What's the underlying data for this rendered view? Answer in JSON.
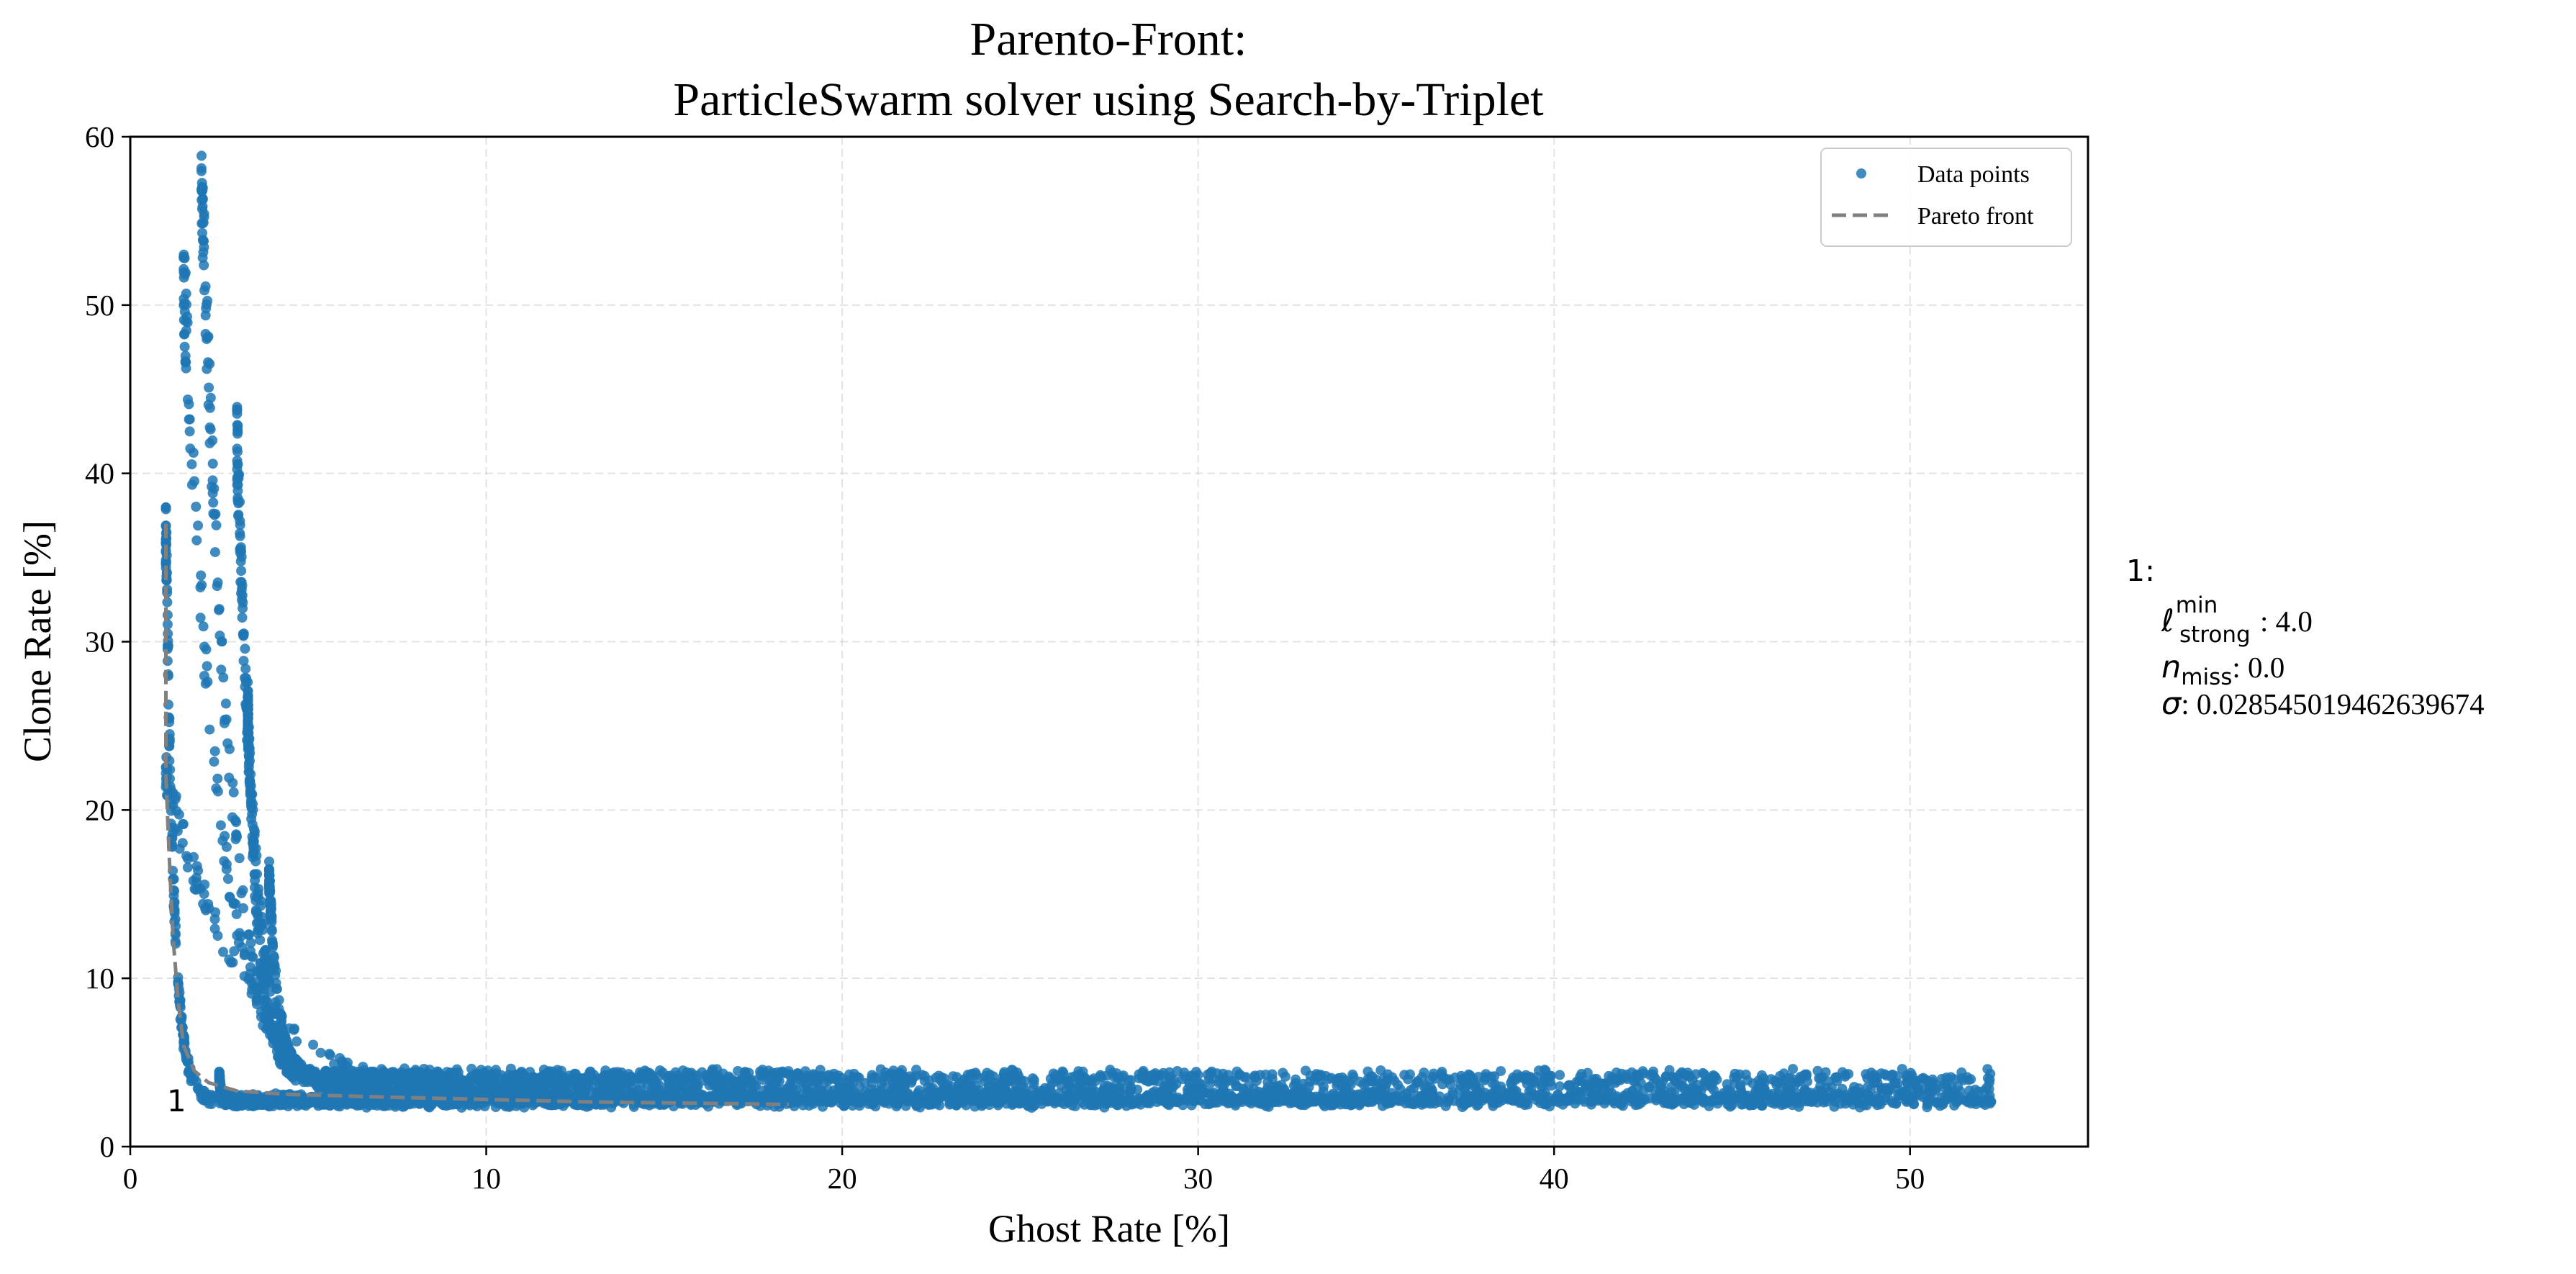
{
  "chart_data": {
    "type": "scatter",
    "title": "Parento-Front:",
    "subtitle": "ParticleSwarm solver using Search-by-Triplet",
    "xlabel": "Ghost Rate [%]",
    "ylabel": "Clone Rate [%]",
    "xlim": [
      0,
      55
    ],
    "ylim": [
      0,
      60
    ],
    "xticks": [
      "0",
      "10",
      "20",
      "30",
      "40",
      "50"
    ],
    "yticks": [
      "0",
      "10",
      "20",
      "30",
      "40",
      "50",
      "60"
    ],
    "grid": true,
    "legend_position": "top-right",
    "series": [
      {
        "name": "Data points",
        "kind": "scatter",
        "color": "#1f77b4",
        "bands": [
          {
            "x0": 1.0,
            "y0": 37,
            "x1": 52.3,
            "y1": 3.3,
            "k": 0.22,
            "tail": 2.8,
            "n": 900
          },
          {
            "x0": 1.0,
            "y0": 22,
            "x1": 52.3,
            "y1": 3.0,
            "k": 2.2,
            "tail": 3.0,
            "n": 240
          },
          {
            "x0": 1.5,
            "y0": 52,
            "x1": 52.3,
            "y1": 3.2,
            "k": 0.95,
            "tail": 3.1,
            "n": 380
          },
          {
            "x0": 2.0,
            "y0": 58.5,
            "x1": 52.3,
            "y1": 3.3,
            "k": 0.75,
            "tail": 3.2,
            "n": 420
          },
          {
            "x0": 3.0,
            "y0": 42,
            "x1": 52.3,
            "y1": 3.4,
            "k": 0.5,
            "tail": 3.5,
            "n": 700
          },
          {
            "x0": 3.3,
            "y0": 26,
            "x1": 52.3,
            "y1": 3.5,
            "k": 0.32,
            "tail": 4.0,
            "n": 700
          },
          {
            "x0": 3.9,
            "y0": 16,
            "x1": 52.3,
            "y1": 3.8,
            "k": 0.26,
            "tail": 4.2,
            "n": 700
          },
          {
            "x0": 2.5,
            "y0": 4.2,
            "x1": 52.3,
            "y1": 2.7,
            "k": 0.05,
            "tail": 2.7,
            "n": 1400
          }
        ]
      },
      {
        "name": "Pareto front",
        "kind": "line",
        "color": "#808080",
        "points": [
          [
            1.0,
            37.0
          ],
          [
            1.0,
            22.0
          ],
          [
            1.1,
            17.0
          ],
          [
            1.2,
            12.5
          ],
          [
            1.35,
            8.5
          ],
          [
            1.5,
            6.0
          ],
          [
            1.8,
            4.5
          ],
          [
            2.2,
            3.8
          ],
          [
            3.0,
            3.3
          ],
          [
            4.5,
            3.1
          ],
          [
            7.0,
            2.95
          ],
          [
            10.0,
            2.8
          ],
          [
            13.0,
            2.65
          ],
          [
            15.0,
            2.6
          ],
          [
            17.0,
            2.55
          ],
          [
            18.5,
            2.5
          ]
        ]
      }
    ],
    "annotations": [
      {
        "text": "1",
        "x": 1.3,
        "y": 2.7
      }
    ],
    "side_note": {
      "header": "1:",
      "l_sym": "ℓ",
      "l_sup": "min",
      "l_sub": "strong",
      "l_val": ": 4.0",
      "n_sym": "n",
      "n_sub": "miss",
      "n_val": ": 0.0",
      "sigma_sym": "σ",
      "sigma_val": ": 0.028545019462639674"
    }
  }
}
